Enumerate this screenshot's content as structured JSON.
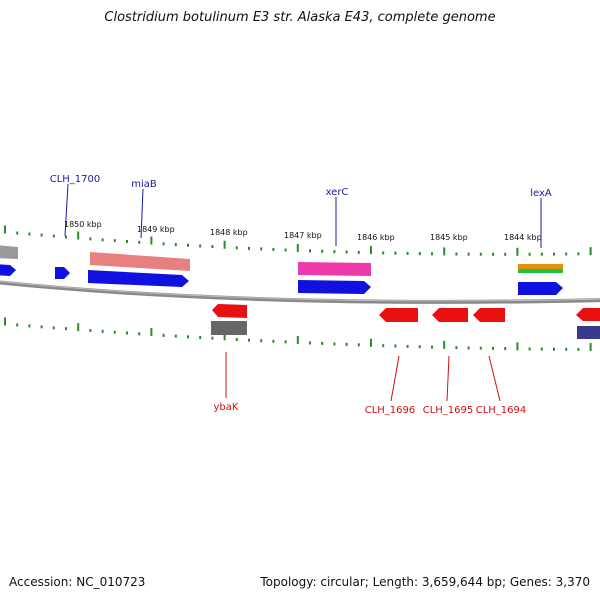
{
  "title": "Clostridium botulinum E3 str. Alaska E43, complete genome",
  "footer": {
    "accession": "Accession: NC_010723",
    "summary": "Topology: circular; Length: 3,659,644 bp; Genes: 3,370"
  },
  "ruler_labels": [
    "1850 kbp",
    "1849 kbp",
    "1848 kbp",
    "1847 kbp",
    "1846 kbp",
    "1845 kbp",
    "1844 kbp"
  ],
  "forward_genes": [
    "CLH_1700",
    "miaB",
    "xerC",
    "lexA"
  ],
  "reverse_genes": [
    "ybaK",
    "CLH_1696",
    "CLH_1695",
    "CLH_1694"
  ],
  "colors": {
    "forward_label": "#1a1aa6",
    "reverse_label": "#d01010",
    "cds_forward": "#1010e0",
    "cds_reverse": "#e81010",
    "tick": "#2a8a2a",
    "backbone": "#7a7a7a"
  }
}
